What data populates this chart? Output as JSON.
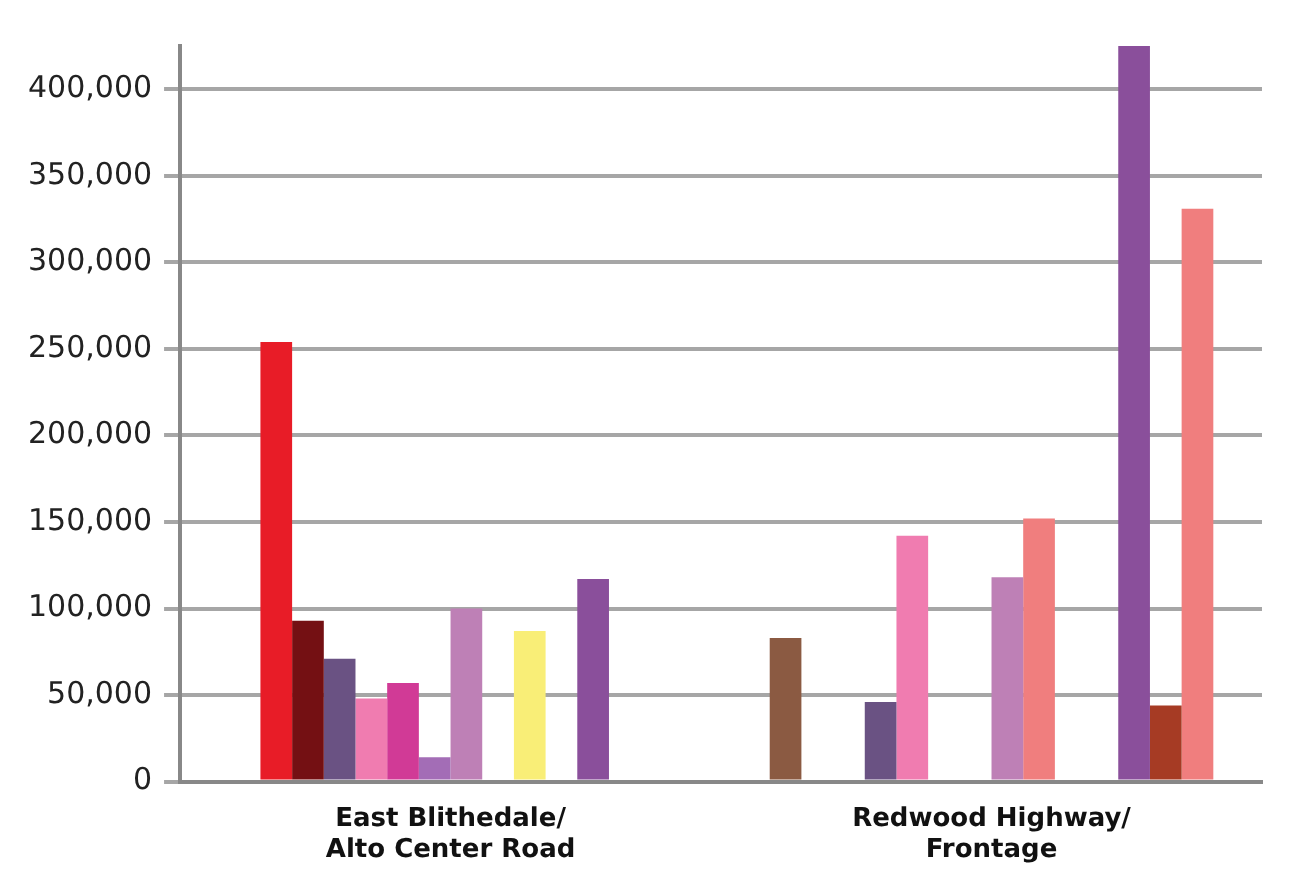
{
  "chart_data": {
    "type": "bar",
    "categories": [
      "East Blithedale/ Alto Center Road",
      "Redwood Highway/ Frontage"
    ],
    "series": [
      {
        "color": "#8b5a42",
        "values": [
          null,
          83000
        ]
      },
      {
        "color": "#e81c27",
        "values": [
          254000,
          null
        ]
      },
      {
        "color": "#741013",
        "values": [
          93000,
          null
        ]
      },
      {
        "color": "#6a5283",
        "values": [
          71000,
          46000
        ]
      },
      {
        "color": "#f07cb0",
        "values": [
          48000,
          142000
        ]
      },
      {
        "color": "#d13a96",
        "values": [
          57000,
          null
        ]
      },
      {
        "color": "#a36db6",
        "values": [
          14000,
          null
        ]
      },
      {
        "color": "#be80b6",
        "values": [
          100000,
          118000
        ]
      },
      {
        "color": "#f07e7e",
        "values": [
          null,
          152000
        ]
      },
      {
        "color": "#f9ee77",
        "values": [
          87000,
          null
        ]
      },
      {
        "color": "#ffffff",
        "values": [
          null,
          null
        ]
      },
      {
        "color": "#8a4f9b",
        "values": [
          117000,
          425000
        ]
      },
      {
        "color": "#a63b24",
        "values": [
          null,
          44000
        ]
      },
      {
        "color": "#f07e7e",
        "values": [
          null,
          331000
        ]
      }
    ],
    "ylim": [
      0,
      425000
    ],
    "yticks": [
      0,
      {
        "value": 50000,
        "label": "50,000"
      },
      {
        "value": 100000,
        "label": "100,000"
      },
      {
        "value": 150000,
        "label": "150,000"
      },
      {
        "value": 200000,
        "label": "200,000"
      },
      {
        "value": 250000,
        "label": "250,000"
      },
      {
        "value": 300000,
        "label": "300,000"
      },
      {
        "value": 350000,
        "label": "350,000"
      },
      {
        "value": 400000,
        "label": "400,000"
      }
    ],
    "grid": "y",
    "legend": false
  }
}
